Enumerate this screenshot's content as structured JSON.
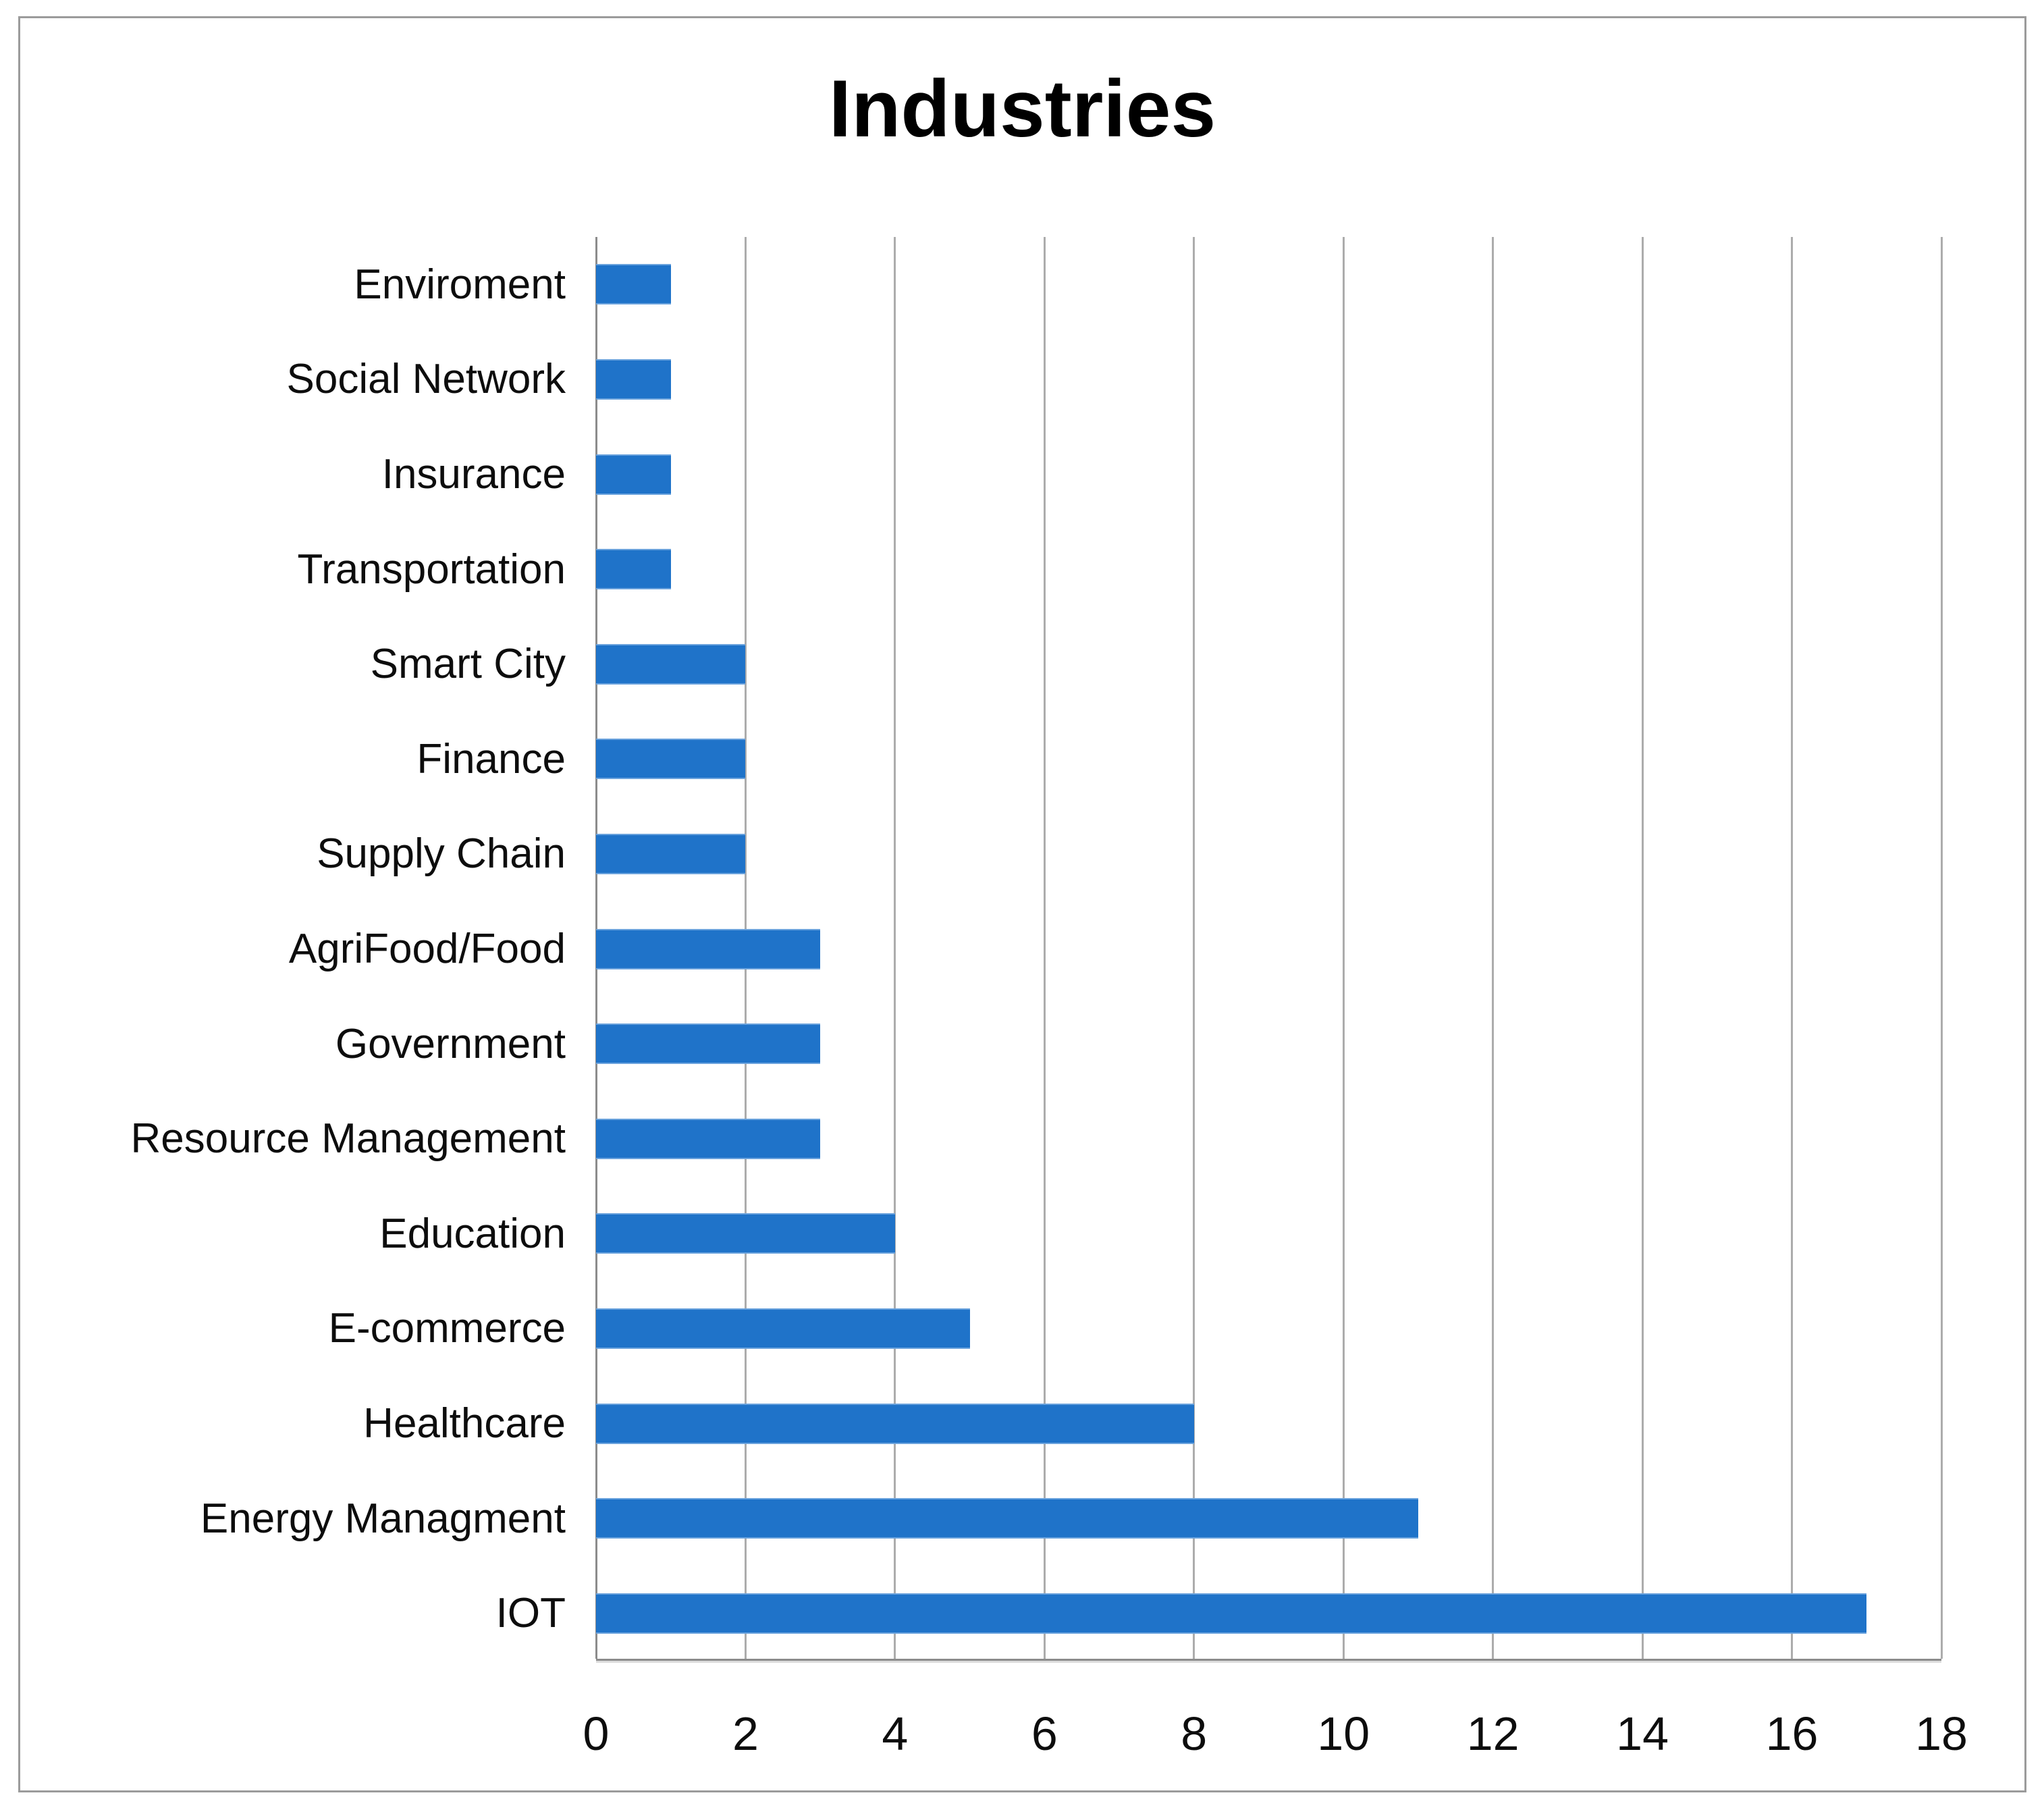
{
  "title": "Industries",
  "chart_data": {
    "type": "bar",
    "orientation": "horizontal",
    "title": "Industries",
    "categories": [
      "Enviroment",
      "Social Network",
      "Insurance",
      "Transportation",
      "Smart City",
      "Finance",
      "Supply Chain",
      "AgriFood/Food",
      "Government",
      "Resource Management",
      "Education",
      "E-commerce",
      "Healthcare",
      "Energy Managment",
      "IOT"
    ],
    "values": [
      1,
      1,
      1,
      1,
      2,
      2,
      2,
      3,
      3,
      3,
      4,
      5,
      8,
      11,
      17
    ],
    "xlabel": "",
    "ylabel": "",
    "xlim": [
      0,
      18
    ],
    "xticks": [
      0,
      2,
      4,
      6,
      8,
      10,
      12,
      14,
      16,
      18
    ],
    "grid": "vertical",
    "legend": "none",
    "colors": {
      "bar": "#1f73c9",
      "gridline": "#acacac",
      "axis_line": "#8c8c8c",
      "text": "#0d0d0d",
      "frame_border": "#9b9b9b",
      "background": "#ffffff"
    }
  }
}
